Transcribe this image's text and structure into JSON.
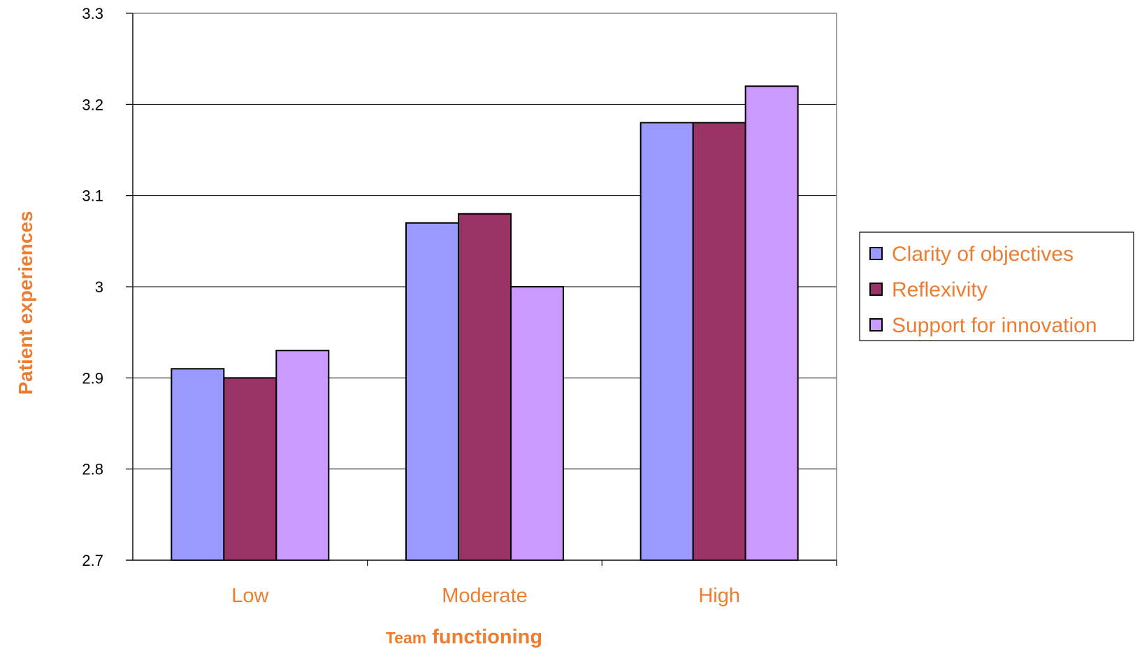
{
  "chart_data": {
    "type": "bar",
    "categories": [
      "Low",
      "Moderate",
      "High"
    ],
    "series": [
      {
        "name": "Clarity of objectives",
        "values": [
          2.91,
          3.07,
          3.18
        ],
        "color": "#9999FF"
      },
      {
        "name": "Reflexivity",
        "values": [
          2.9,
          3.08,
          3.18
        ],
        "color": "#993366"
      },
      {
        "name": "Support for innovation",
        "values": [
          2.93,
          3.0,
          3.22
        ],
        "color": "#CC99FF"
      }
    ],
    "ylim": [
      2.7,
      3.3
    ],
    "yticks": [
      "2.7",
      "2.8",
      "2.9",
      "3",
      "3.1",
      "3.2",
      "3.3"
    ],
    "ylabel": "Patient experiences",
    "xlabel_part1": "Team",
    "xlabel_part2": "functioning",
    "grid": true,
    "legend_position": "right",
    "label_color": "#ED7D31"
  }
}
